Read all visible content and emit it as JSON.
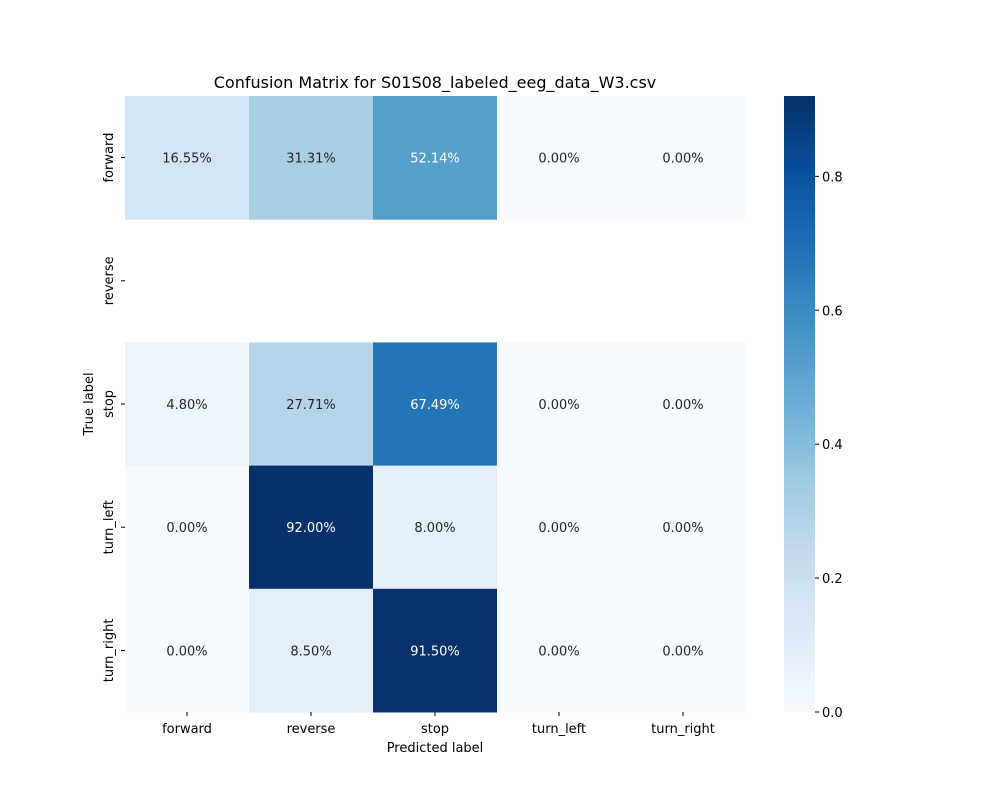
{
  "chart_data": {
    "type": "heatmap",
    "title": "Confusion Matrix for S01S08_labeled_eeg_data_W3.csv",
    "xlabel": "Predicted label",
    "ylabel": "True label",
    "x_categories": [
      "forward",
      "reverse",
      "stop",
      "turn_left",
      "turn_right"
    ],
    "y_categories": [
      "forward",
      "reverse",
      "stop",
      "turn_left",
      "turn_right"
    ],
    "values": [
      [
        0.1655,
        0.3131,
        0.5214,
        0.0,
        0.0
      ],
      [
        null,
        null,
        null,
        null,
        null
      ],
      [
        0.048,
        0.2771,
        0.6749,
        0.0,
        0.0
      ],
      [
        0.0,
        0.92,
        0.08,
        0.0,
        0.0
      ],
      [
        0.0,
        0.085,
        0.915,
        0.0,
        0.0
      ]
    ],
    "annotations": [
      [
        "16.55%",
        "31.31%",
        "52.14%",
        "0.00%",
        "0.00%"
      ],
      [
        "",
        "",
        "",
        "",
        ""
      ],
      [
        "4.80%",
        "27.71%",
        "67.49%",
        "0.00%",
        "0.00%"
      ],
      [
        "0.00%",
        "92.00%",
        "8.00%",
        "0.00%",
        "0.00%"
      ],
      [
        "0.00%",
        "8.50%",
        "91.50%",
        "0.00%",
        "0.00%"
      ]
    ],
    "colormap": "Blues",
    "colorbar": {
      "range": [
        0,
        0.92
      ],
      "ticks": [
        "0.0",
        "0.2",
        "0.4",
        "0.6",
        "0.8"
      ]
    },
    "grid": false
  }
}
